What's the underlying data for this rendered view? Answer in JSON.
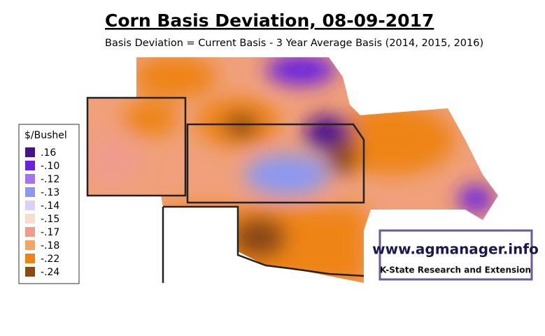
{
  "header": {
    "title": "Corn Basis Deviation, 08-09-2017",
    "subtitle": "Basis Deviation = Current Basis - 3 Year Average Basis (2014, 2015, 2016)"
  },
  "legend": {
    "title": "$/Bushel",
    "items": [
      {
        "label": ".16",
        "color": "#4a1090"
      },
      {
        "label": "-.10",
        "color": "#6a22e0"
      },
      {
        "label": "-.12",
        "color": "#a474ee"
      },
      {
        "label": "-.13",
        "color": "#8c98f0"
      },
      {
        "label": "-.14",
        "color": "#dcd0f4"
      },
      {
        "label": "-.15",
        "color": "#f8dccc"
      },
      {
        "label": "-.17",
        "color": "#f09c8c"
      },
      {
        "label": "-.18",
        "color": "#f4a464"
      },
      {
        "label": "-.22",
        "color": "#ee8418"
      },
      {
        "label": "-.24",
        "color": "#8a4a12"
      }
    ]
  },
  "logo": {
    "url": "www.agmanager.info",
    "org": "K-State Research and Extension"
  }
}
